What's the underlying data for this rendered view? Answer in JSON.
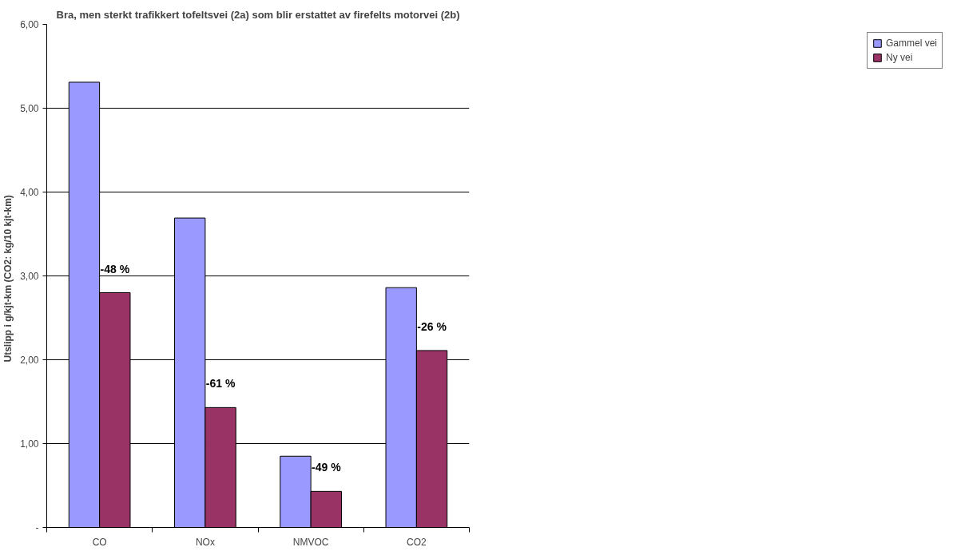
{
  "chart_data": {
    "type": "bar",
    "title": "Bra, men sterkt trafikkert tofeltsvei (2a) som blir erstattet av firefelts motorvei (2b)",
    "ylabel": "Utslipp i g/kjt-km  (CO2:  kg/10 kjt-km)",
    "categories": [
      "CO",
      "NOx",
      "NMVOC",
      "CO2"
    ],
    "series": [
      {
        "name": "Gammel vei",
        "color": "#9999ff",
        "values": [
          5.31,
          3.69,
          0.85,
          2.86
        ]
      },
      {
        "name": "Ny vei",
        "color": "#993366",
        "values": [
          2.8,
          1.43,
          0.43,
          2.11
        ]
      }
    ],
    "ylim": [
      0,
      6
    ],
    "yticks": [
      {
        "value": 0,
        "label": "-"
      },
      {
        "value": 1,
        "label": "1,00"
      },
      {
        "value": 2,
        "label": "2,00"
      },
      {
        "value": 3,
        "label": "3,00"
      },
      {
        "value": 4,
        "label": "4,00"
      },
      {
        "value": 5,
        "label": "5,00"
      },
      {
        "value": 6,
        "label": "6,00"
      }
    ],
    "grid": "y",
    "legend": "right",
    "annotations": [
      {
        "text": "-48 %",
        "x": "CO",
        "y": 2.8
      },
      {
        "text": "-61 %",
        "x": "NOx",
        "y": 1.43
      },
      {
        "text": "-49 %",
        "x": "NMVOC",
        "y": 0.43
      },
      {
        "text": "-26 %",
        "x": "CO2",
        "y": 2.11
      }
    ]
  }
}
